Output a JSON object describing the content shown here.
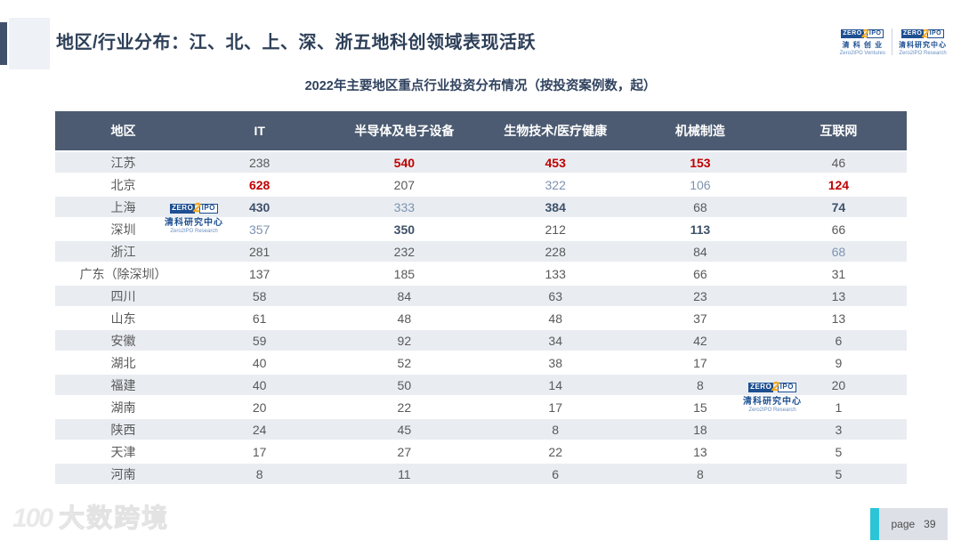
{
  "colors": {
    "title_navy": "#2e4059",
    "table_header_bg": "#4c5b71",
    "row_alt_bg": "#e9edf2",
    "value_red": "#c00000",
    "value_blue": "#7d93af",
    "value_navy_bold": "#3e5168",
    "value_normal": "#595959",
    "page_accent_teal": "#2cc5d8"
  },
  "header": {
    "title": "地区/行业分布：江、北、上、深、浙五地科创领域表现活跃"
  },
  "logo_ventures": {
    "zero": "ZERO",
    "two": "2",
    "ipo": "IPO",
    "cn": "清 科 创 业",
    "en": "Zero2IPO Ventures"
  },
  "logo_research": {
    "zero": "ZERO",
    "two": "2",
    "ipo": "IPO",
    "cn": "清科研究中心",
    "en": "Zero2IPO Research"
  },
  "subtitle": "2022年主要地区重点行业投资分布情况（按投资案例数，起）",
  "table": {
    "columns": [
      "地区",
      "IT",
      "半导体及电子设备",
      "生物技术/医疗健康",
      "机械制造",
      "互联网"
    ],
    "rows": [
      {
        "region": "江苏",
        "cells": [
          {
            "v": "238",
            "s": "n"
          },
          {
            "v": "540",
            "s": "r"
          },
          {
            "v": "453",
            "s": "r"
          },
          {
            "v": "153",
            "s": "r"
          },
          {
            "v": "46",
            "s": "n"
          }
        ]
      },
      {
        "region": "北京",
        "cells": [
          {
            "v": "628",
            "s": "r"
          },
          {
            "v": "207",
            "s": "n"
          },
          {
            "v": "322",
            "s": "b"
          },
          {
            "v": "106",
            "s": "b"
          },
          {
            "v": "124",
            "s": "r"
          }
        ]
      },
      {
        "region": "上海",
        "cells": [
          {
            "v": "430",
            "s": "d"
          },
          {
            "v": "333",
            "s": "b"
          },
          {
            "v": "384",
            "s": "d"
          },
          {
            "v": "68",
            "s": "n"
          },
          {
            "v": "74",
            "s": "d"
          }
        ]
      },
      {
        "region": "深圳",
        "cells": [
          {
            "v": "357",
            "s": "b"
          },
          {
            "v": "350",
            "s": "d"
          },
          {
            "v": "212",
            "s": "n"
          },
          {
            "v": "113",
            "s": "d"
          },
          {
            "v": "66",
            "s": "n"
          }
        ]
      },
      {
        "region": "浙江",
        "cells": [
          {
            "v": "281",
            "s": "n"
          },
          {
            "v": "232",
            "s": "n"
          },
          {
            "v": "228",
            "s": "n"
          },
          {
            "v": "84",
            "s": "n"
          },
          {
            "v": "68",
            "s": "b"
          }
        ]
      },
      {
        "region": "广东（除深圳）",
        "cells": [
          {
            "v": "137",
            "s": "n"
          },
          {
            "v": "185",
            "s": "n"
          },
          {
            "v": "133",
            "s": "n"
          },
          {
            "v": "66",
            "s": "n"
          },
          {
            "v": "31",
            "s": "n"
          }
        ]
      },
      {
        "region": "四川",
        "cells": [
          {
            "v": "58",
            "s": "n"
          },
          {
            "v": "84",
            "s": "n"
          },
          {
            "v": "63",
            "s": "n"
          },
          {
            "v": "23",
            "s": "n"
          },
          {
            "v": "13",
            "s": "n"
          }
        ]
      },
      {
        "region": "山东",
        "cells": [
          {
            "v": "61",
            "s": "n"
          },
          {
            "v": "48",
            "s": "n"
          },
          {
            "v": "48",
            "s": "n"
          },
          {
            "v": "37",
            "s": "n"
          },
          {
            "v": "13",
            "s": "n"
          }
        ]
      },
      {
        "region": "安徽",
        "cells": [
          {
            "v": "59",
            "s": "n"
          },
          {
            "v": "92",
            "s": "n"
          },
          {
            "v": "34",
            "s": "n"
          },
          {
            "v": "42",
            "s": "n"
          },
          {
            "v": "6",
            "s": "n"
          }
        ]
      },
      {
        "region": "湖北",
        "cells": [
          {
            "v": "40",
            "s": "n"
          },
          {
            "v": "52",
            "s": "n"
          },
          {
            "v": "38",
            "s": "n"
          },
          {
            "v": "17",
            "s": "n"
          },
          {
            "v": "9",
            "s": "n"
          }
        ]
      },
      {
        "region": "福建",
        "cells": [
          {
            "v": "40",
            "s": "n"
          },
          {
            "v": "50",
            "s": "n"
          },
          {
            "v": "14",
            "s": "n"
          },
          {
            "v": "8",
            "s": "n"
          },
          {
            "v": "20",
            "s": "n"
          }
        ]
      },
      {
        "region": "湖南",
        "cells": [
          {
            "v": "20",
            "s": "n"
          },
          {
            "v": "22",
            "s": "n"
          },
          {
            "v": "17",
            "s": "n"
          },
          {
            "v": "15",
            "s": "n"
          },
          {
            "v": "1",
            "s": "n"
          }
        ]
      },
      {
        "region": "陕西",
        "cells": [
          {
            "v": "24",
            "s": "n"
          },
          {
            "v": "45",
            "s": "n"
          },
          {
            "v": "8",
            "s": "n"
          },
          {
            "v": "18",
            "s": "n"
          },
          {
            "v": "3",
            "s": "n"
          }
        ]
      },
      {
        "region": "天津",
        "cells": [
          {
            "v": "17",
            "s": "n"
          },
          {
            "v": "27",
            "s": "n"
          },
          {
            "v": "22",
            "s": "n"
          },
          {
            "v": "13",
            "s": "n"
          },
          {
            "v": "5",
            "s": "n"
          }
        ]
      },
      {
        "region": "河南",
        "cells": [
          {
            "v": "8",
            "s": "n"
          },
          {
            "v": "11",
            "s": "n"
          },
          {
            "v": "6",
            "s": "n"
          },
          {
            "v": "8",
            "s": "n"
          },
          {
            "v": "5",
            "s": "n"
          }
        ]
      }
    ]
  },
  "footer": {
    "brand_mark": "100",
    "brand_name": "大数跨境",
    "page_label": "page",
    "page_number": "39"
  }
}
